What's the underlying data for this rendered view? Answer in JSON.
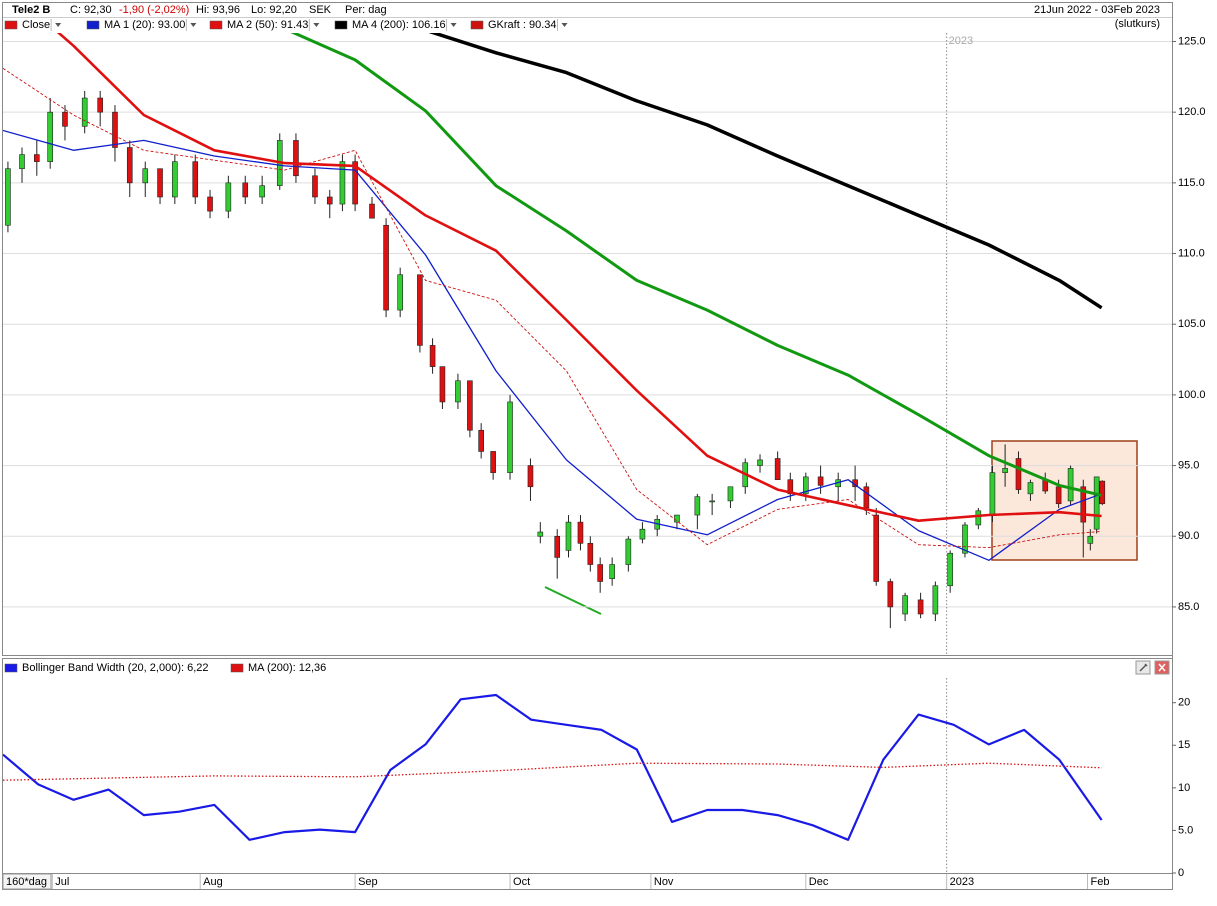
{
  "chart_data": [
    {
      "type": "candlestick",
      "title": "Tele2 B",
      "header": {
        "close": "C: 92,30",
        "change": "-1,90 (-2,02%)",
        "high": "Hi: 93,96",
        "low": "Lo: 92,20",
        "currency": "SEK",
        "period": "Per: dag",
        "range": "21Jun 2022 - 03Feb 2023",
        "note": "(slutkurs)"
      },
      "period_label": "160*dag",
      "xlim": [
        0,
        166
      ],
      "xticks": [
        {
          "value": 7,
          "label": "Jul"
        },
        {
          "value": 28,
          "label": "Aug"
        },
        {
          "value": 50,
          "label": "Sep"
        },
        {
          "value": 72,
          "label": "Oct"
        },
        {
          "value": 92,
          "label": "Nov"
        },
        {
          "value": 114,
          "label": "Dec"
        },
        {
          "value": 134,
          "label": "2023"
        },
        {
          "value": 154,
          "label": "Feb"
        }
      ],
      "ylim": [
        81.6,
        125.6
      ],
      "yticks": [
        {
          "value": 85,
          "label": "85.0"
        },
        {
          "value": 90,
          "label": "90.0"
        },
        {
          "value": 95,
          "label": "95.0"
        },
        {
          "value": 100,
          "label": "100.0"
        },
        {
          "value": 105,
          "label": "105.0"
        },
        {
          "value": 110,
          "label": "110.0"
        },
        {
          "value": 115,
          "label": "115.0"
        },
        {
          "value": 120,
          "label": "120.0"
        },
        {
          "value": 125,
          "label": "125.0"
        }
      ],
      "grid": true,
      "candles": {
        "name": "Close",
        "color": "#dd1111",
        "up_color": "#33cc33",
        "down_color": "#dd1111",
        "x": [
          0.7,
          2.7,
          4.8,
          6.7,
          8.8,
          11.6,
          13.8,
          15.9,
          18,
          20.2,
          22.3,
          24.4,
          27.3,
          29.4,
          32,
          34.4,
          36.8,
          39.3,
          41.6,
          44.3,
          46.4,
          48.2,
          50,
          52.4,
          54.4,
          56.4,
          59.2,
          61,
          62.4,
          64.6,
          66.3,
          67.9,
          69.6,
          72,
          74.9,
          76.3,
          78.7,
          80.3,
          82,
          83.4,
          84.8,
          86.5,
          88.8,
          90.8,
          92.9,
          95.7,
          98.6,
          100.7,
          103.3,
          105.4,
          107.5,
          110,
          111.8,
          114,
          116.1,
          118.6,
          121,
          122.6,
          124,
          126,
          128.1,
          130.3,
          132.4,
          134.5,
          136.6,
          138.5,
          140.5,
          142.3,
          144.2,
          145.9,
          148,
          149.9,
          151.6,
          153.4,
          154.4,
          155.3,
          156.1
        ],
        "open": [
          112,
          116,
          117,
          116.5,
          120,
          119,
          121,
          120,
          117.5,
          115,
          116,
          114,
          116.5,
          114,
          113,
          115,
          114,
          114.8,
          118,
          115.5,
          114,
          113.5,
          116.5,
          113.5,
          112,
          106,
          108.5,
          103.5,
          102,
          99.5,
          101,
          97.5,
          96,
          94.5,
          95,
          90,
          90,
          89,
          91,
          89.5,
          88,
          87,
          88,
          89.8,
          90.5,
          91,
          91.5,
          92.5,
          92.5,
          93.5,
          95,
          95.5,
          94,
          93,
          94.2,
          93.5,
          94,
          93.5,
          91.5,
          86.8,
          84.5,
          85.5,
          84.5,
          86.5,
          88.8,
          90.8,
          91.5,
          94.5,
          95.5,
          93,
          94,
          93.5,
          92.5,
          93.5,
          89.5,
          90.5,
          93.9
        ],
        "high": [
          116.5,
          117.5,
          118,
          121,
          120.5,
          121.5,
          121.5,
          120.5,
          118,
          116.5,
          116,
          117,
          117,
          114.5,
          115.5,
          115.5,
          115.5,
          118.5,
          118.5,
          116,
          114.5,
          117,
          117,
          114,
          112.5,
          109,
          108.5,
          104,
          102,
          101.5,
          101,
          98,
          96,
          100,
          95.5,
          91,
          90.5,
          91.5,
          91.5,
          90,
          88.5,
          88.5,
          90,
          91,
          91.5,
          91.5,
          93,
          93,
          93.5,
          95.5,
          95.8,
          96,
          94.5,
          94.5,
          95,
          94.5,
          95,
          93.8,
          92,
          87,
          86,
          86,
          86.8,
          89,
          91,
          92,
          95,
          96.5,
          96,
          94,
          94.5,
          94,
          95,
          94,
          90.5,
          94.2,
          93.96
        ],
        "low": [
          111.5,
          115,
          115.5,
          116,
          118,
          118.5,
          119,
          116.5,
          114,
          114,
          113.5,
          113.5,
          113.5,
          112.5,
          112.5,
          113.5,
          113.5,
          114.5,
          115,
          113.5,
          112.5,
          113,
          113,
          112.5,
          105.5,
          105.5,
          103,
          101.5,
          99,
          99,
          97,
          95.5,
          94,
          94,
          92.5,
          89.5,
          87,
          88.5,
          89,
          87.5,
          86,
          86.5,
          87.5,
          89.5,
          90,
          90.5,
          90.5,
          91.5,
          92,
          93,
          94.5,
          94,
          92.5,
          92.5,
          93,
          92.5,
          92.5,
          91.5,
          86.5,
          83.5,
          84,
          84.2,
          84,
          86,
          88.5,
          90.5,
          91,
          93.5,
          93,
          92.5,
          93,
          92,
          92.2,
          88.5,
          89,
          90.2,
          92.2
        ],
        "close": [
          116,
          117,
          116.5,
          120,
          119,
          121,
          120,
          117.5,
          115,
          116,
          114,
          116.5,
          114,
          113,
          115,
          114,
          114.8,
          118,
          115.5,
          114,
          113.5,
          116.5,
          113.5,
          112.5,
          106,
          108.5,
          103.5,
          102,
          99.5,
          101,
          97.5,
          96,
          94.5,
          99.5,
          93.5,
          90.3,
          88.5,
          91,
          89.5,
          88,
          86.8,
          88,
          89.8,
          90.5,
          91.2,
          91.5,
          92.8,
          92.5,
          93.5,
          95.2,
          95.4,
          94,
          93,
          94.2,
          93.6,
          94,
          93.5,
          92,
          86.8,
          85,
          85.8,
          84.5,
          86.5,
          88.8,
          90.8,
          91.8,
          94.5,
          94.8,
          93.3,
          93.8,
          93.2,
          92.3,
          94.8,
          91,
          90,
          94.2,
          92.3
        ]
      },
      "series": [
        {
          "name": "MA 1 (20): 93.00",
          "color": "#1020cc",
          "width": 1.3,
          "x": [
            0,
            10,
            20,
            30,
            40,
            50,
            60,
            70,
            80,
            90,
            100,
            110,
            120,
            130,
            140,
            150,
            156
          ],
          "values": [
            118.7,
            117.3,
            118,
            116.9,
            116.2,
            115.9,
            109.9,
            101.7,
            95.4,
            91.2,
            90.1,
            92.6,
            94,
            90.4,
            88.3,
            91.9,
            93.0
          ]
        },
        {
          "name": "MA 2 (50): 91.43",
          "color": "#e01010",
          "width": 2.6,
          "x": [
            7,
            10,
            20,
            30,
            40,
            50,
            60,
            70,
            80,
            90,
            100,
            110,
            120,
            130,
            140,
            150,
            156
          ],
          "values": [
            126,
            124.7,
            119.8,
            117.3,
            116.4,
            116.2,
            112.7,
            110.2,
            105.3,
            100.3,
            95.7,
            93.3,
            92.2,
            91.1,
            91.5,
            91.7,
            91.43
          ]
        },
        {
          "color": "#119911",
          "width": 3,
          "x": [
            40,
            50,
            60,
            70,
            80,
            90,
            100,
            110,
            120,
            130,
            140,
            150,
            156
          ],
          "values": [
            125.9,
            123.7,
            120.1,
            114.8,
            111.6,
            108.1,
            106,
            103.5,
            101.4,
            98.6,
            95.7,
            93.6,
            92.9
          ]
        },
        {
          "name": "MA 4 (200): 106.16",
          "color": "#000000",
          "width": 3.5,
          "x": [
            60,
            70,
            80,
            90,
            100,
            110,
            120,
            130,
            140,
            150,
            156
          ],
          "values": [
            125.8,
            124.2,
            122.8,
            120.8,
            119.1,
            116.9,
            114.8,
            112.7,
            110.6,
            108.1,
            106.16
          ]
        },
        {
          "name": "GKraft : 90.34",
          "color": "#cc1111",
          "width": 0.9,
          "style": "dashed",
          "x": [
            0,
            10,
            20,
            30,
            40,
            50,
            60,
            70,
            80,
            90,
            100,
            110,
            120,
            130,
            140,
            150,
            156
          ],
          "values": [
            123.1,
            119.8,
            117.3,
            116.6,
            115.9,
            117.3,
            108.1,
            106.7,
            101.7,
            93.3,
            89.4,
            91.9,
            92.6,
            89.4,
            89.2,
            90.1,
            90.34
          ]
        }
      ]
    },
    {
      "type": "line",
      "xlim": [
        0,
        166
      ],
      "ylim": [
        0,
        22.9
      ],
      "yticks": [
        0,
        {
          "value": 5,
          "label": "5.0"
        },
        10,
        15,
        20
      ],
      "series": [
        {
          "name": "Bollinger Band Width (20, 2,000): 6,22",
          "color": "#1a1ae6",
          "width": 2.2,
          "x": [
            0,
            5,
            10,
            15,
            20,
            25,
            30,
            35,
            40,
            45,
            50,
            55,
            60,
            65,
            70,
            75,
            80,
            85,
            90,
            95,
            100,
            105,
            110,
            115,
            120,
            125,
            130,
            135,
            140,
            145,
            150,
            156
          ],
          "values": [
            13.9,
            10.4,
            8.6,
            9.8,
            6.8,
            7.2,
            8,
            3.9,
            4.8,
            5.1,
            4.8,
            12.1,
            15.1,
            20.4,
            20.9,
            18,
            17.4,
            16.8,
            14.5,
            6,
            7.4,
            7.4,
            6.8,
            5.6,
            3.9,
            13.3,
            18.6,
            17.4,
            15.1,
            16.8,
            13.3,
            6.22
          ]
        },
        {
          "name": "MA (200): 12,36",
          "color": "#dd1111",
          "width": 1.3,
          "style": "dotted",
          "x": [
            0,
            30,
            50,
            70,
            90,
            110,
            125,
            140,
            156
          ],
          "values": [
            10.9,
            11.4,
            11.3,
            12,
            12.9,
            12.8,
            12.4,
            12.9,
            12.36
          ]
        }
      ]
    }
  ]
}
